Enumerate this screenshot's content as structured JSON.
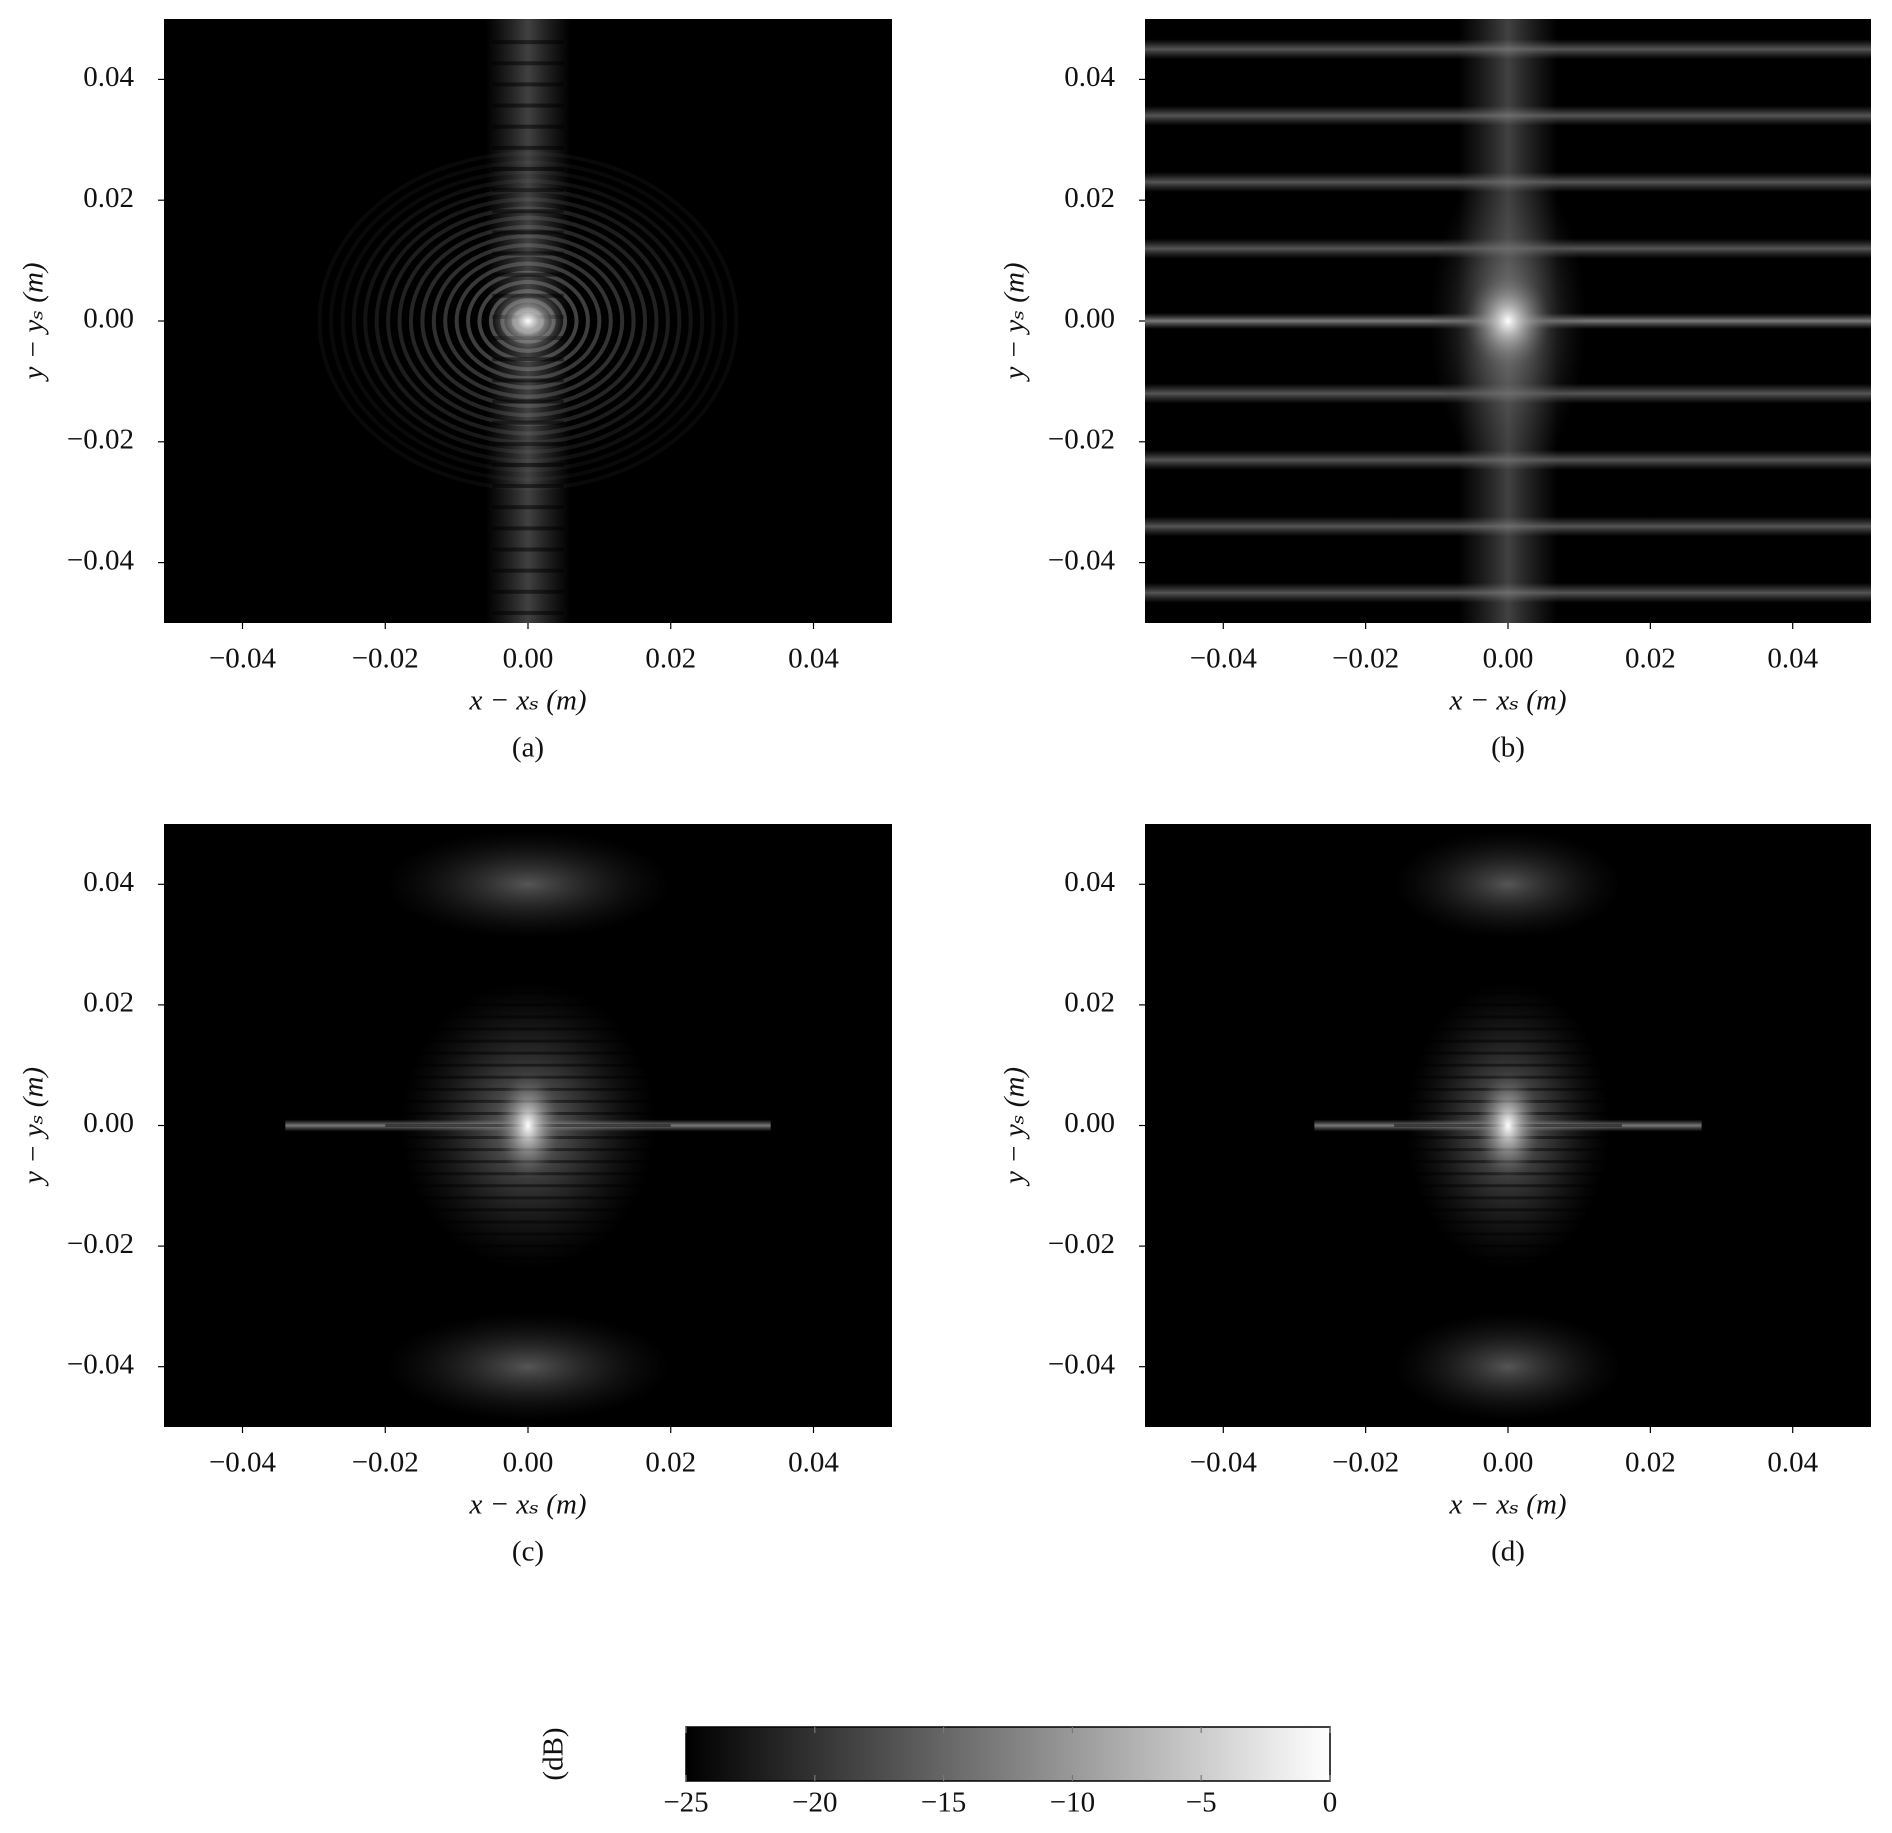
{
  "chart_data": [
    {
      "type": "heatmap",
      "caption": "(a)",
      "xlabel": "x − xₛ (m)",
      "ylabel": "y − yₛ (m)",
      "xlim": [
        -0.051,
        0.051
      ],
      "ylim": [
        -0.05,
        0.05
      ],
      "xticks": [
        {
          "value": -0.04,
          "label": "−0.04"
        },
        {
          "value": -0.02,
          "label": "−0.02"
        },
        {
          "value": 0,
          "label": "0.00"
        },
        {
          "value": 0.02,
          "label": "0.02"
        },
        {
          "value": 0.04,
          "label": "0.04"
        }
      ],
      "yticks": [
        {
          "value": -0.04,
          "label": "−0.04"
        },
        {
          "value": -0.02,
          "label": "−0.02"
        },
        {
          "value": 0,
          "label": "0.00"
        },
        {
          "value": 0.02,
          "label": "0.02"
        },
        {
          "value": 0.04,
          "label": "0.04"
        }
      ]
    },
    {
      "type": "heatmap",
      "caption": "(b)",
      "xlabel": "x − xₛ (m)",
      "ylabel": "y − yₛ (m)",
      "xlim": [
        -0.051,
        0.051
      ],
      "ylim": [
        -0.05,
        0.05
      ],
      "xticks": [
        {
          "value": -0.04,
          "label": "−0.04"
        },
        {
          "value": -0.02,
          "label": "−0.02"
        },
        {
          "value": 0,
          "label": "0.00"
        },
        {
          "value": 0.02,
          "label": "0.02"
        },
        {
          "value": 0.04,
          "label": "0.04"
        }
      ],
      "yticks": [
        {
          "value": -0.04,
          "label": "−0.04"
        },
        {
          "value": -0.02,
          "label": "−0.02"
        },
        {
          "value": 0,
          "label": "0.00"
        },
        {
          "value": 0.02,
          "label": "0.02"
        },
        {
          "value": 0.04,
          "label": "0.04"
        }
      ]
    },
    {
      "type": "heatmap",
      "caption": "(c)",
      "xlabel": "x − xₛ (m)",
      "ylabel": "y − yₛ (m)",
      "xlim": [
        -0.051,
        0.051
      ],
      "ylim": [
        -0.05,
        0.05
      ],
      "xticks": [
        {
          "value": -0.04,
          "label": "−0.04"
        },
        {
          "value": -0.02,
          "label": "−0.02"
        },
        {
          "value": 0,
          "label": "0.00"
        },
        {
          "value": 0.02,
          "label": "0.02"
        },
        {
          "value": 0.04,
          "label": "0.04"
        }
      ],
      "yticks": [
        {
          "value": -0.04,
          "label": "−0.04"
        },
        {
          "value": -0.02,
          "label": "−0.02"
        },
        {
          "value": 0,
          "label": "0.00"
        },
        {
          "value": 0.02,
          "label": "0.02"
        },
        {
          "value": 0.04,
          "label": "0.04"
        }
      ]
    },
    {
      "type": "heatmap",
      "caption": "(d)",
      "xlabel": "x − xₛ (m)",
      "ylabel": "y − yₛ (m)",
      "xlim": [
        -0.051,
        0.051
      ],
      "ylim": [
        -0.05,
        0.05
      ],
      "xticks": [
        {
          "value": -0.04,
          "label": "−0.04"
        },
        {
          "value": -0.02,
          "label": "−0.02"
        },
        {
          "value": 0,
          "label": "0.00"
        },
        {
          "value": 0.02,
          "label": "0.02"
        },
        {
          "value": 0.04,
          "label": "0.04"
        }
      ],
      "yticks": [
        {
          "value": -0.04,
          "label": "−0.04"
        },
        {
          "value": -0.02,
          "label": "−0.02"
        },
        {
          "value": 0,
          "label": "0.00"
        },
        {
          "value": 0.02,
          "label": "0.02"
        },
        {
          "value": 0.04,
          "label": "0.04"
        }
      ]
    },
    {
      "type": "colorbar",
      "label": "(dB)",
      "clim": [
        -25,
        0
      ],
      "colors": [
        "#000000",
        "#ffffff"
      ],
      "ticks": [
        {
          "value": -25,
          "label": "−25"
        },
        {
          "value": -20,
          "label": "−20"
        },
        {
          "value": -15,
          "label": "−15"
        },
        {
          "value": -10,
          "label": "−10"
        },
        {
          "value": -5,
          "label": "−5"
        },
        0
      ]
    }
  ]
}
